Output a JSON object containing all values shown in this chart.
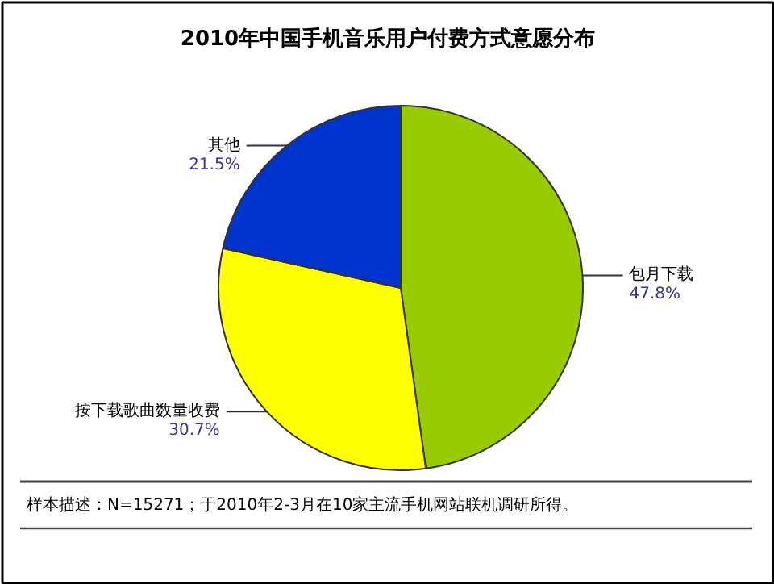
{
  "chart_data": {
    "type": "pie",
    "title": "2010年中国手机音乐用户付费方式意愿分布",
    "categories": [
      "包月下载",
      "按下载歌曲数量收费",
      "其他"
    ],
    "values": [
      47.8,
      30.7,
      21.5
    ],
    "colors": [
      "#99cc00",
      "#ffff00",
      "#0033cc"
    ],
    "value_labels": [
      "47.8%",
      "30.7%",
      "21.5%"
    ],
    "annotations": [
      "样本描述：N=15271；于2010年2-3月在10家主流手机网站联机调研所得。"
    ]
  }
}
